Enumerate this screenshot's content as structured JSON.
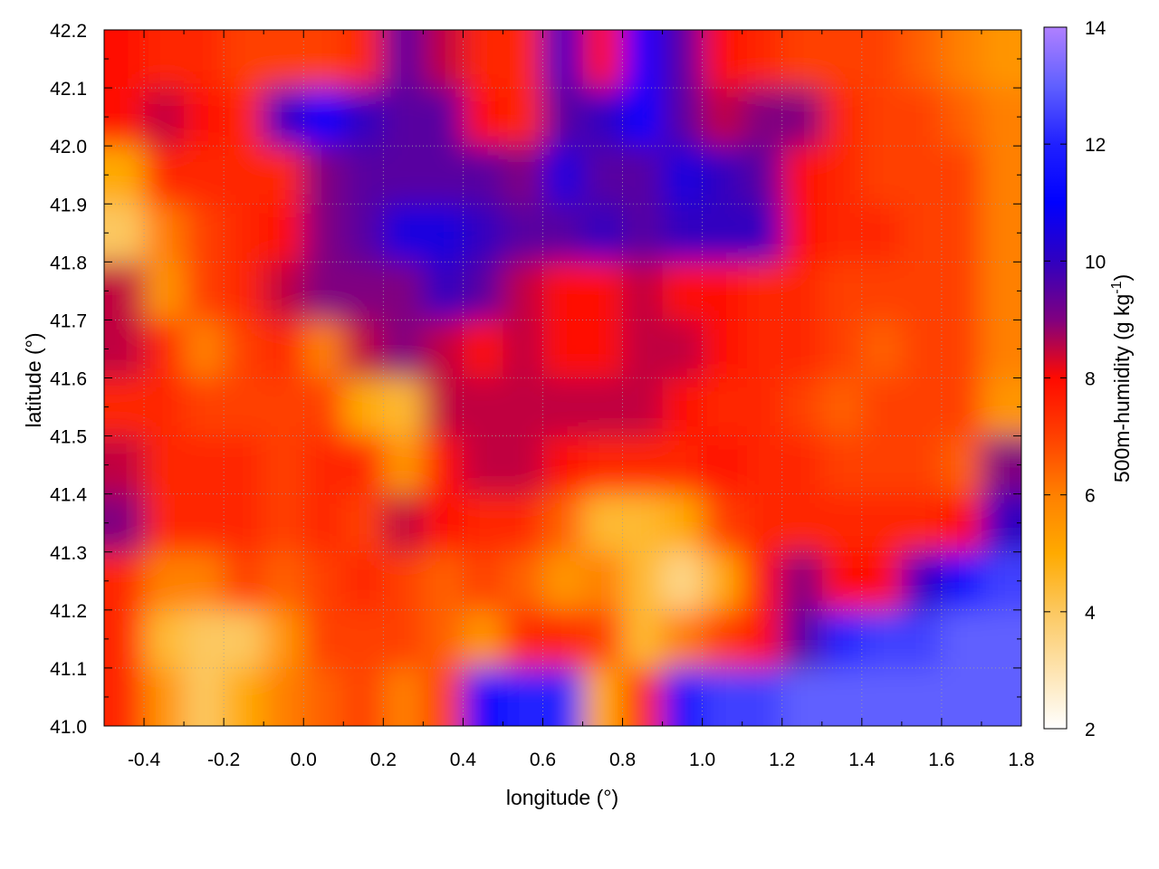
{
  "chart_data": {
    "type": "heatmap",
    "title": "",
    "xlabel": "longitude (°)",
    "ylabel": "latitude (°)",
    "colorbar_label": "500m-humidity (g kg",
    "colorbar_label_sup": "-1",
    "colorbar_label_end": ")",
    "xlim": [
      -0.5,
      1.8
    ],
    "ylim": [
      41.0,
      42.2
    ],
    "clim": [
      2,
      14
    ],
    "grid": true,
    "x_ticks": [
      "-0.4",
      "-0.2",
      "0.0",
      "0.2",
      "0.4",
      "0.6",
      "0.8",
      "1.0",
      "1.2",
      "1.4",
      "1.6",
      "1.8"
    ],
    "y_ticks": [
      "41.0",
      "41.1",
      "41.2",
      "41.3",
      "41.4",
      "41.5",
      "41.6",
      "41.7",
      "41.8",
      "41.9",
      "42.0",
      "42.1",
      "42.2"
    ],
    "colorbar_ticks": [
      "2",
      "4",
      "6",
      "8",
      "10",
      "12",
      "14"
    ],
    "colormap": [
      [
        2,
        "#ffffff"
      ],
      [
        4,
        "#fcc860"
      ],
      [
        5,
        "#ffaa00"
      ],
      [
        6,
        "#ff8000"
      ],
      [
        7,
        "#ff4000"
      ],
      [
        8,
        "#ff0a00"
      ],
      [
        9,
        "#800080"
      ],
      [
        10,
        "#3000c0"
      ],
      [
        11,
        "#0000ff"
      ],
      [
        12,
        "#2020ff"
      ],
      [
        13,
        "#6060ff"
      ],
      [
        14,
        "#b080ff"
      ]
    ],
    "lon_centers": [
      -0.45,
      -0.35,
      -0.25,
      -0.15,
      -0.05,
      0.05,
      0.15,
      0.25,
      0.35,
      0.45,
      0.55,
      0.65,
      0.75,
      0.85,
      0.95,
      1.05,
      1.15,
      1.25,
      1.35,
      1.45,
      1.55,
      1.65,
      1.75
    ],
    "lat_centers": [
      42.15,
      42.05,
      41.95,
      41.85,
      41.75,
      41.65,
      41.55,
      41.45,
      41.35,
      41.25,
      41.15,
      41.05
    ],
    "values": [
      [
        8,
        7.5,
        7.5,
        7,
        7,
        7,
        7.5,
        9.5,
        8.5,
        7.5,
        7.5,
        10,
        8,
        11,
        9.5,
        8,
        7.5,
        7,
        7,
        7,
        6.5,
        6,
        5.5
      ],
      [
        8,
        8.5,
        8,
        7.5,
        10,
        11,
        10,
        9.5,
        9.5,
        8,
        7.5,
        9.5,
        10,
        11,
        9.5,
        8.5,
        9,
        9,
        7.5,
        7,
        7,
        6.5,
        6
      ],
      [
        5,
        7.5,
        7.5,
        7.5,
        7.5,
        9,
        9.5,
        9.5,
        9.5,
        9.5,
        9,
        10.5,
        9.5,
        9.5,
        10.5,
        10,
        9.5,
        8,
        7.5,
        7,
        7,
        7,
        6
      ],
      [
        4,
        6,
        7,
        7.5,
        8,
        9,
        9.5,
        10.5,
        10.5,
        10,
        9.5,
        9.5,
        10,
        9.5,
        10,
        10,
        10,
        8,
        7.5,
        7.5,
        7,
        7,
        6
      ],
      [
        8.5,
        5.5,
        7,
        7.5,
        8.5,
        9,
        9,
        9,
        10,
        9.5,
        8.5,
        8,
        8,
        8.5,
        8,
        8,
        7.5,
        7.5,
        7,
        7,
        7,
        7,
        6
      ],
      [
        8.5,
        7.5,
        6,
        7,
        7.5,
        6,
        8.5,
        9,
        8.5,
        8,
        8.5,
        8,
        8,
        8.5,
        8.5,
        8,
        7.5,
        7.5,
        7,
        6.5,
        7,
        7,
        6
      ],
      [
        7.5,
        7.5,
        7,
        7,
        7,
        7,
        5,
        4.5,
        8.5,
        8.5,
        8.5,
        8.5,
        8.5,
        8.5,
        8,
        7.5,
        7.5,
        7,
        6.5,
        7,
        7,
        7,
        5.5
      ],
      [
        8.5,
        7.5,
        7.5,
        7.5,
        7,
        7.5,
        7.5,
        5.5,
        8,
        8.5,
        8.5,
        8,
        7.5,
        7.5,
        7.5,
        8,
        7.5,
        7.5,
        7,
        7,
        7,
        6.5,
        9
      ],
      [
        9,
        7.5,
        7.5,
        7.5,
        7,
        7.5,
        7,
        8.5,
        8,
        7.5,
        7.5,
        6.5,
        4.5,
        4.5,
        5,
        7,
        7.5,
        7.5,
        7.5,
        7.5,
        7.5,
        8,
        10
      ],
      [
        7.5,
        6,
        6,
        7,
        6.5,
        7,
        7.5,
        7,
        6.5,
        7,
        6.5,
        5.5,
        6,
        4.5,
        3.5,
        5,
        8,
        9,
        8,
        8,
        10,
        11.5,
        12.5
      ],
      [
        7.5,
        4.5,
        4,
        4,
        5.5,
        7,
        7,
        7,
        6.5,
        5.5,
        7.5,
        7.5,
        7,
        4.5,
        6,
        7,
        8,
        9.5,
        12,
        12.5,
        12.5,
        13,
        13
      ],
      [
        7.5,
        5.5,
        4,
        5,
        6,
        6.5,
        7,
        6,
        7,
        11,
        12,
        12,
        5,
        7.5,
        11.5,
        12.5,
        12.5,
        13,
        13,
        13,
        13,
        13,
        13
      ]
    ]
  }
}
